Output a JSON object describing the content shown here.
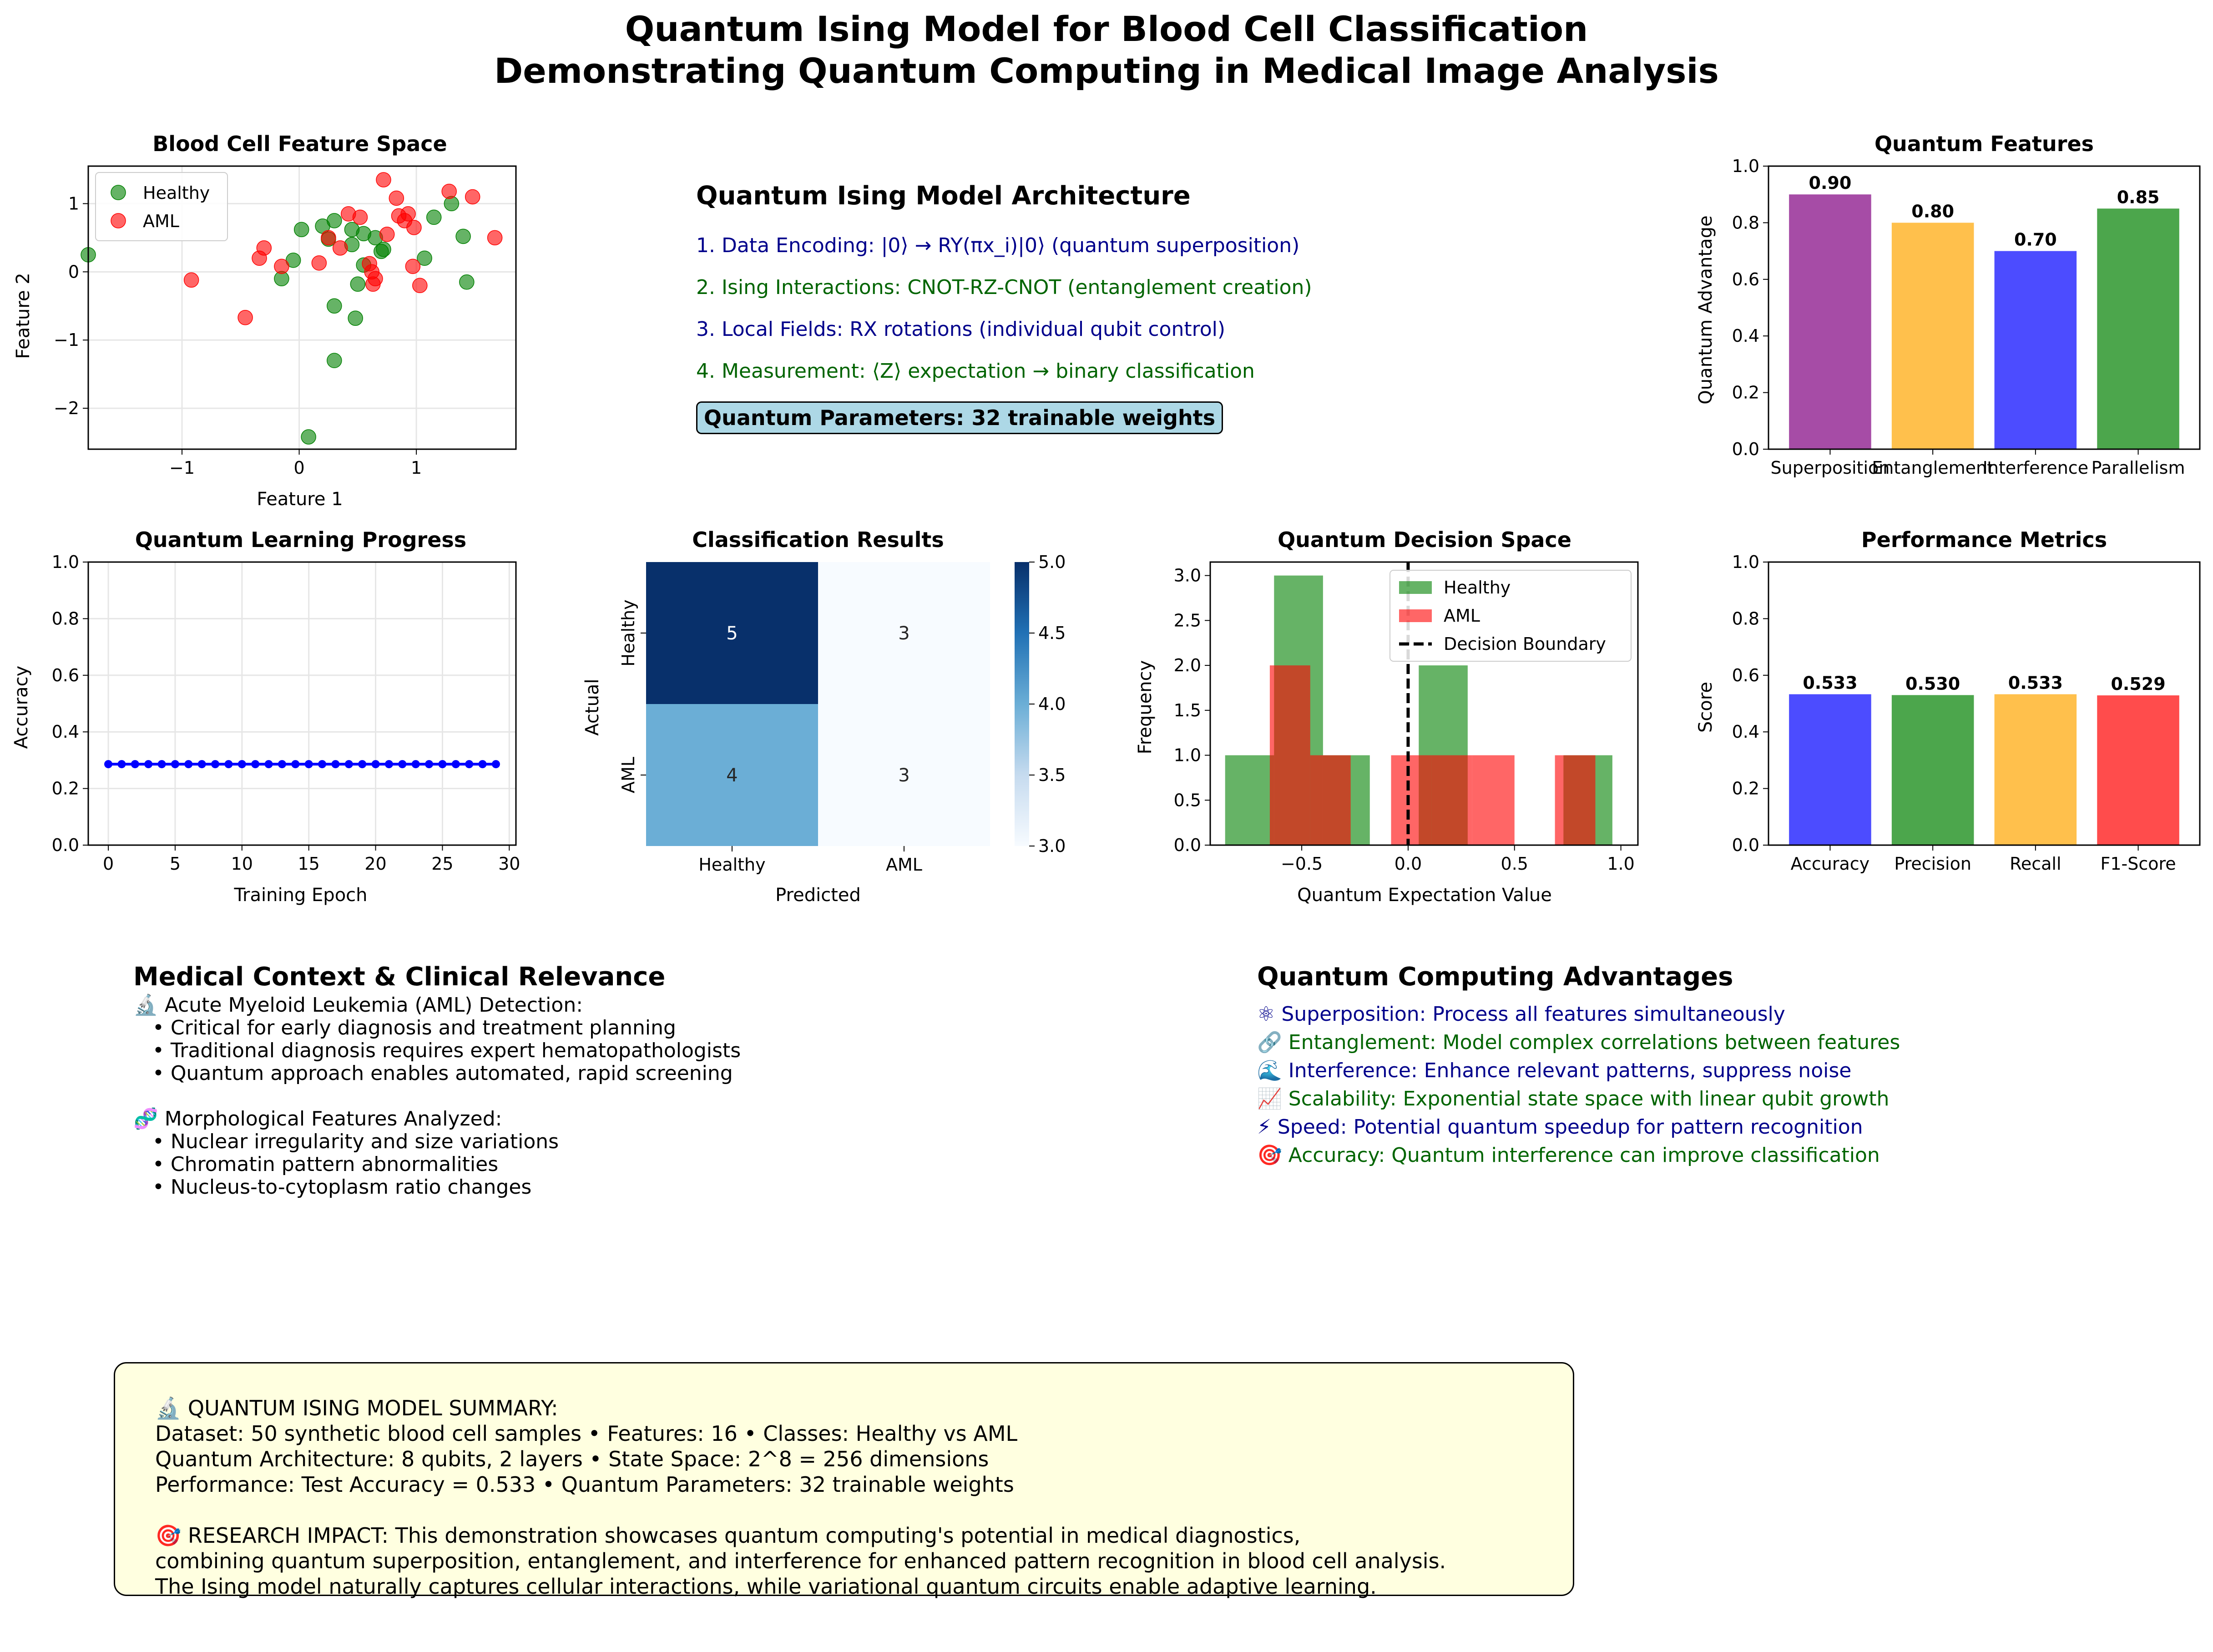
{
  "title": {
    "line1": "Quantum Ising Model for Blood Cell Classification",
    "line2": "Demonstrating Quantum Computing in Medical Image Analysis"
  },
  "architecture": {
    "heading": "Quantum Ising Model Architecture",
    "steps": [
      {
        "text": "1. Data Encoding: |0⟩ → RY(πx_i)|0⟩ (quantum superposition)",
        "color": "#00008b"
      },
      {
        "text": "2. Ising Interactions: CNOT-RZ-CNOT (entanglement creation)",
        "color": "#006400"
      },
      {
        "text": "3. Local Fields: RX rotations (individual qubit control)",
        "color": "#00008b"
      },
      {
        "text": "4. Measurement: ⟨Z⟩ expectation → binary classification",
        "color": "#006400"
      }
    ],
    "params_box": "Quantum Parameters: 32 trainable weights",
    "params_box_color": "#add8e6"
  },
  "medical": {
    "heading": "Medical Context & Clinical Relevance",
    "lines": [
      "🔬 Acute Myeloid Leukemia (AML) Detection:",
      "   • Critical for early diagnosis and treatment planning",
      "   • Traditional diagnosis requires expert hematopathologists",
      "   • Quantum approach enables automated, rapid screening",
      "",
      "🧬 Morphological Features Analyzed:",
      "   • Nuclear irregularity and size variations",
      "   • Chromatin pattern abnormalities",
      "   • Nucleus-to-cytoplasm ratio changes"
    ]
  },
  "advantages": {
    "heading": "Quantum Computing Advantages",
    "items": [
      {
        "text": "⚛  Superposition: Process all features simultaneously",
        "color": "#00008b"
      },
      {
        "text": "🔗 Entanglement: Model complex correlations between features",
        "color": "#006400"
      },
      {
        "text": "🌊 Interference: Enhance relevant patterns, suppress noise",
        "color": "#00008b"
      },
      {
        "text": "📈 Scalability: Exponential state space with linear qubit growth",
        "color": "#006400"
      },
      {
        "text": "⚡ Speed: Potential quantum speedup for pattern recognition",
        "color": "#00008b"
      },
      {
        "text": "🎯 Accuracy: Quantum interference can improve classification",
        "color": "#006400"
      }
    ]
  },
  "summary": {
    "background": "#ffffe0",
    "lines": [
      "🔬 QUANTUM ISING MODEL SUMMARY:",
      "Dataset: 50 synthetic blood cell samples • Features: 16 • Classes: Healthy vs AML",
      "Quantum Architecture: 8 qubits, 2 layers • State Space: 2^8 = 256 dimensions",
      "Performance: Test Accuracy = 0.533 • Quantum Parameters: 32 trainable weights",
      "",
      "🎯 RESEARCH IMPACT: This demonstration showcases quantum computing's potential in medical diagnostics,",
      "combining quantum superposition, entanglement, and interference for enhanced pattern recognition in blood cell analysis.",
      "The Ising model naturally captures cellular interactions, while variational quantum circuits enable adaptive learning."
    ]
  },
  "chart_data": [
    {
      "id": "feature-space",
      "type": "scatter",
      "title": "Blood Cell Feature Space",
      "xlabel": "Feature 1",
      "ylabel": "Feature 2",
      "xlim": [
        -1.8,
        1.85
      ],
      "ylim": [
        -2.6,
        1.55
      ],
      "xticks": [
        -1,
        0,
        1
      ],
      "yticks": [
        -2,
        -1,
        0,
        1
      ],
      "grid": true,
      "legend": "top-left",
      "series": [
        {
          "name": "Healthy",
          "color": "#008000",
          "points": [
            [
              -1.8,
              0.25
            ],
            [
              0.02,
              0.62
            ],
            [
              0.2,
              0.67
            ],
            [
              0.3,
              0.75
            ],
            [
              0.45,
              0.62
            ],
            [
              0.55,
              0.56
            ],
            [
              0.65,
              0.5
            ],
            [
              0.7,
              0.3
            ],
            [
              -0.05,
              0.17
            ],
            [
              -0.15,
              -0.1
            ],
            [
              0.45,
              0.4
            ],
            [
              0.55,
              0.1
            ],
            [
              0.5,
              -0.18
            ],
            [
              0.3,
              -0.5
            ],
            [
              0.48,
              -0.68
            ],
            [
              0.3,
              -1.3
            ],
            [
              0.08,
              -2.42
            ],
            [
              1.15,
              0.8
            ],
            [
              1.3,
              1.0
            ],
            [
              1.4,
              0.52
            ],
            [
              1.07,
              0.2
            ],
            [
              1.43,
              -0.15
            ],
            [
              0.72,
              0.33
            ],
            [
              0.25,
              0.48
            ]
          ]
        },
        {
          "name": "AML",
          "color": "#ff0000",
          "points": [
            [
              0.72,
              1.35
            ],
            [
              0.83,
              1.08
            ],
            [
              1.28,
              1.18
            ],
            [
              1.48,
              1.1
            ],
            [
              0.42,
              0.85
            ],
            [
              0.52,
              0.8
            ],
            [
              0.85,
              0.82
            ],
            [
              0.9,
              0.75
            ],
            [
              0.93,
              0.85
            ],
            [
              0.98,
              0.65
            ],
            [
              0.75,
              0.55
            ],
            [
              1.67,
              0.5
            ],
            [
              0.25,
              0.5
            ],
            [
              -0.3,
              0.35
            ],
            [
              -0.34,
              0.2
            ],
            [
              0.17,
              0.13
            ],
            [
              -0.15,
              0.08
            ],
            [
              0.6,
              0.12
            ],
            [
              0.62,
              0.0
            ],
            [
              0.65,
              -0.1
            ],
            [
              0.63,
              -0.18
            ],
            [
              0.97,
              0.08
            ],
            [
              1.03,
              -0.2
            ],
            [
              -0.92,
              -0.12
            ],
            [
              -0.46,
              -0.67
            ],
            [
              0.35,
              0.35
            ]
          ]
        }
      ]
    },
    {
      "id": "quantum-features",
      "type": "bar",
      "title": "Quantum Features",
      "ylabel": "Quantum Advantage",
      "categories": [
        "Superposition",
        "Entanglement",
        "Interference",
        "Parallelism"
      ],
      "values": [
        0.9,
        0.8,
        0.7,
        0.85
      ],
      "labels": [
        "0.90",
        "0.80",
        "0.70",
        "0.85"
      ],
      "colors": [
        "#800080",
        "#ffa500",
        "#0000ff",
        "#008000"
      ],
      "ylim": [
        0,
        1.0
      ],
      "yticks": [
        "0.0",
        "0.2",
        "0.4",
        "0.6",
        "0.8",
        "1.0"
      ]
    },
    {
      "id": "learning-progress",
      "type": "line",
      "title": "Quantum Learning Progress",
      "xlabel": "Training Epoch",
      "ylabel": "Accuracy",
      "x": [
        0,
        1,
        2,
        3,
        4,
        5,
        6,
        7,
        8,
        9,
        10,
        11,
        12,
        13,
        14,
        15,
        16,
        17,
        18,
        19,
        20,
        21,
        22,
        23,
        24,
        25,
        26,
        27,
        28,
        29
      ],
      "y": [
        0.286,
        0.286,
        0.286,
        0.286,
        0.286,
        0.286,
        0.286,
        0.286,
        0.286,
        0.286,
        0.286,
        0.286,
        0.286,
        0.286,
        0.286,
        0.286,
        0.286,
        0.286,
        0.286,
        0.286,
        0.286,
        0.286,
        0.286,
        0.286,
        0.286,
        0.286,
        0.286,
        0.286,
        0.286,
        0.286
      ],
      "xlim": [
        -1.5,
        30.5
      ],
      "ylim": [
        0,
        1.0
      ],
      "xticks": [
        0,
        5,
        10,
        15,
        20,
        25,
        30
      ],
      "yticks": [
        "0.0",
        "0.2",
        "0.4",
        "0.6",
        "0.8",
        "1.0"
      ],
      "color": "#0000ff",
      "grid": true
    },
    {
      "id": "confusion",
      "type": "heatmap",
      "title": "Classification Results",
      "xlabel": "Predicted",
      "ylabel": "Actual",
      "x_categories": [
        "Healthy",
        "AML"
      ],
      "y_categories": [
        "Healthy",
        "AML"
      ],
      "values": [
        [
          5,
          3
        ],
        [
          4,
          3
        ]
      ],
      "colorbar_range": [
        3.0,
        5.0
      ],
      "colorbar_ticks": [
        "3.0",
        "3.5",
        "4.0",
        "4.5",
        "5.0"
      ]
    },
    {
      "id": "decision-space",
      "type": "histogram",
      "title": "Quantum Decision Space",
      "xlabel": "Quantum Expectation Value",
      "ylabel": "Frequency",
      "xlim": [
        -0.93,
        1.08
      ],
      "ylim": [
        0,
        3.15
      ],
      "xticks": [
        "−0.5",
        "0.0",
        "0.5",
        "1.0"
      ],
      "xtick_values": [
        -0.5,
        0.0,
        0.5,
        1.0
      ],
      "yticks": [
        "0.0",
        "0.5",
        "1.0",
        "1.5",
        "2.0",
        "2.5",
        "3.0"
      ],
      "decision_boundary": 0.0,
      "legend": "top-right",
      "series": [
        {
          "name": "Healthy",
          "color": "#008000",
          "bins": [
            [
              -0.86,
              -0.63,
              1
            ],
            [
              -0.63,
              -0.4,
              3
            ],
            [
              -0.4,
              -0.18,
              1
            ],
            [
              -0.18,
              0.05,
              0
            ],
            [
              0.05,
              0.28,
              2
            ],
            [
              0.28,
              0.5,
              0
            ],
            [
              0.5,
              0.73,
              0
            ],
            [
              0.73,
              0.96,
              1
            ]
          ]
        },
        {
          "name": "AML",
          "color": "#ff0000",
          "bins": [
            [
              -0.65,
              -0.46,
              2
            ],
            [
              -0.46,
              -0.27,
              1
            ],
            [
              -0.27,
              -0.08,
              0
            ],
            [
              -0.08,
              0.11,
              1
            ],
            [
              0.11,
              0.3,
              1
            ],
            [
              0.3,
              0.5,
              1
            ],
            [
              0.5,
              0.69,
              0
            ],
            [
              0.69,
              0.88,
              1
            ]
          ]
        }
      ],
      "boundary_label": "Decision Boundary"
    },
    {
      "id": "performance",
      "type": "bar",
      "title": "Performance Metrics",
      "ylabel": "Score",
      "categories": [
        "Accuracy",
        "Precision",
        "Recall",
        "F1-Score"
      ],
      "values": [
        0.533,
        0.53,
        0.533,
        0.529
      ],
      "labels": [
        "0.533",
        "0.530",
        "0.533",
        "0.529"
      ],
      "colors": [
        "#0000ff",
        "#008000",
        "#ffa500",
        "#ff0000"
      ],
      "ylim": [
        0,
        1.0
      ],
      "yticks": [
        "0.0",
        "0.2",
        "0.4",
        "0.6",
        "0.8",
        "1.0"
      ]
    }
  ]
}
